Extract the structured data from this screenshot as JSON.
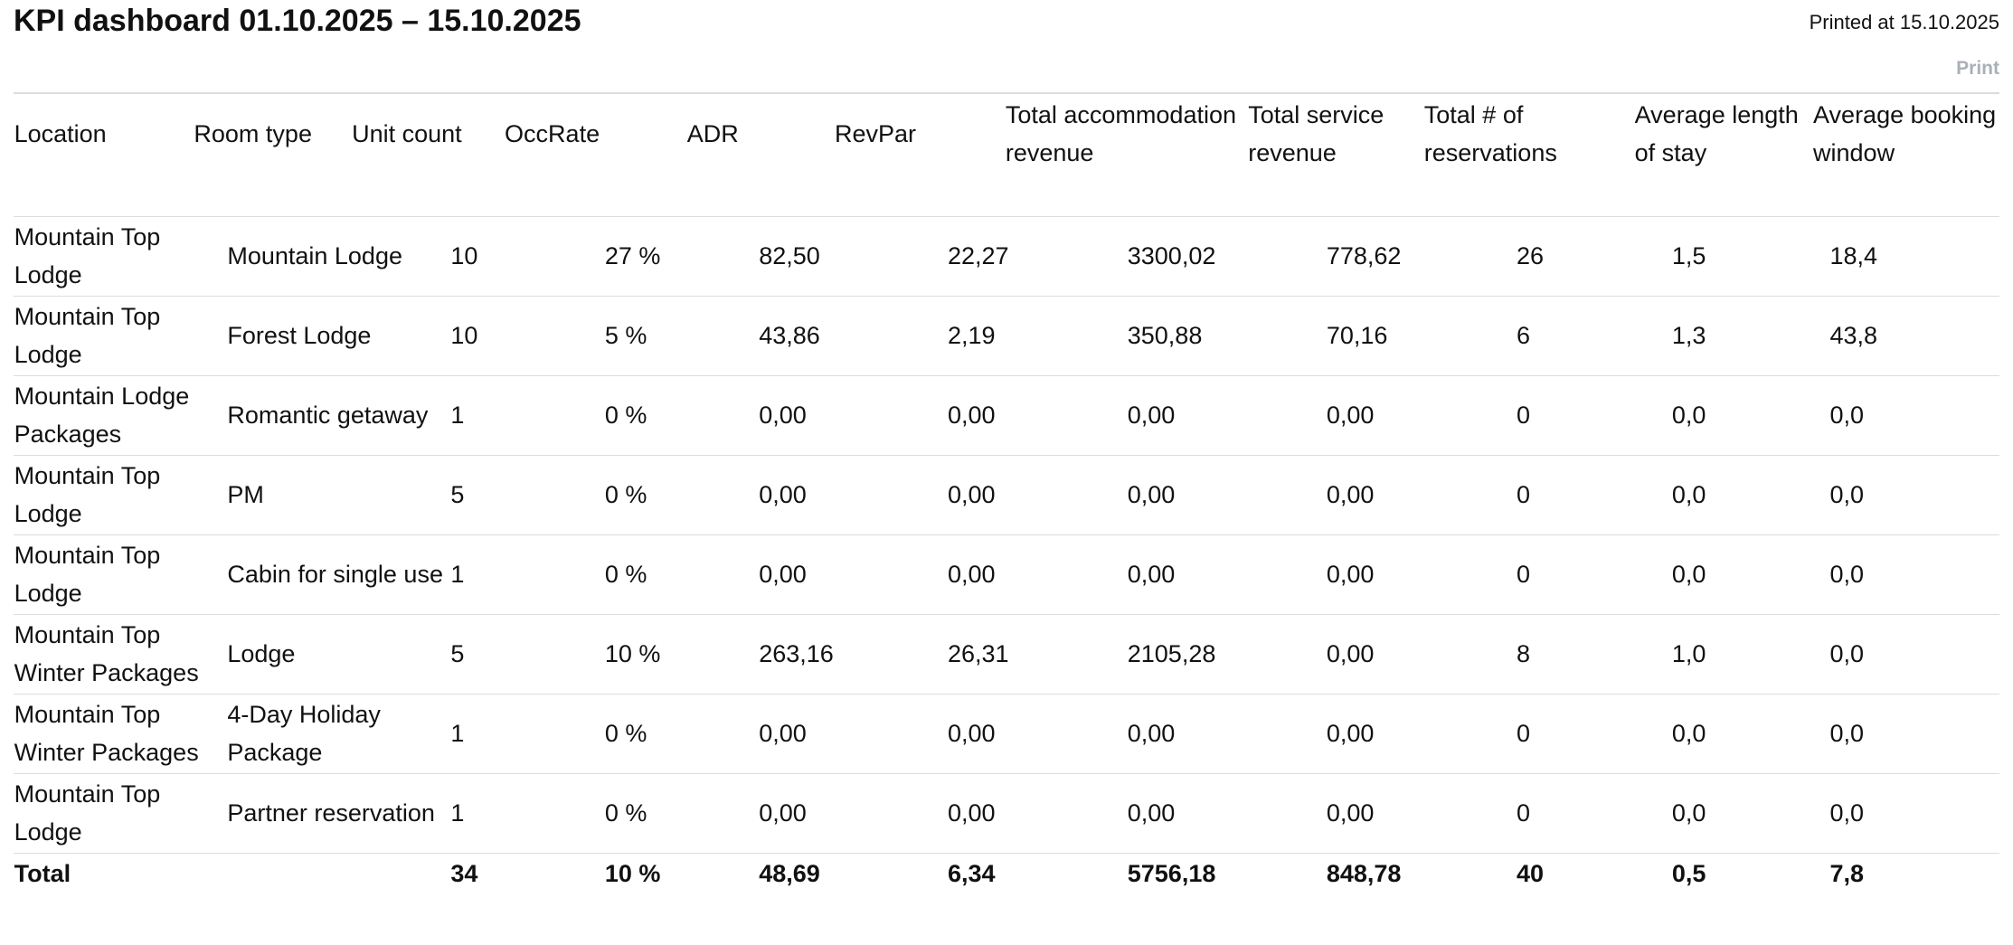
{
  "header": {
    "title": "KPI dashboard 01.10.2025 – 15.10.2025",
    "printed": "Printed at 15.10.2025",
    "print": "Print"
  },
  "table": {
    "columns": [
      "Location",
      "Room type",
      "Unit count",
      "OccRate",
      "ADR",
      "RevPar",
      "Total accommodation revenue",
      "Total service revenue",
      "Total # of reservations",
      "Average length of stay",
      "Average booking window"
    ],
    "rows": [
      [
        "Mountain Top Lodge",
        "Mountain Lodge",
        "10",
        "27 %",
        "82,50",
        "22,27",
        "3300,02",
        "778,62",
        "26",
        "1,5",
        "18,4"
      ],
      [
        "Mountain Top Lodge",
        "Forest Lodge",
        "10",
        "5 %",
        "43,86",
        "2,19",
        "350,88",
        "70,16",
        "6",
        "1,3",
        "43,8"
      ],
      [
        "Mountain Lodge Packages",
        "Romantic getaway",
        "1",
        "0 %",
        "0,00",
        "0,00",
        "0,00",
        "0,00",
        "0",
        "0,0",
        "0,0"
      ],
      [
        "Mountain Top Lodge",
        "PM",
        "5",
        "0 %",
        "0,00",
        "0,00",
        "0,00",
        "0,00",
        "0",
        "0,0",
        "0,0"
      ],
      [
        "Mountain Top Lodge",
        "Cabin for single use",
        "1",
        "0 %",
        "0,00",
        "0,00",
        "0,00",
        "0,00",
        "0",
        "0,0",
        "0,0"
      ],
      [
        "Mountain Top Winter Packages",
        "Lodge",
        "5",
        "10 %",
        "263,16",
        "26,31",
        "2105,28",
        "0,00",
        "8",
        "1,0",
        "0,0"
      ],
      [
        "Mountain Top Winter Packages",
        "4-Day Holiday Package",
        "1",
        "0 %",
        "0,00",
        "0,00",
        "0,00",
        "0,00",
        "0",
        "0,0",
        "0,0"
      ],
      [
        "Mountain Top Lodge",
        "Partner reservation",
        "1",
        "0 %",
        "0,00",
        "0,00",
        "0,00",
        "0,00",
        "0",
        "0,0",
        "0,0"
      ]
    ],
    "total": [
      "Total",
      "34",
      "10 %",
      "48,69",
      "6,34",
      "5756,18",
      "848,78",
      "40",
      "0,5",
      "7,8"
    ]
  }
}
